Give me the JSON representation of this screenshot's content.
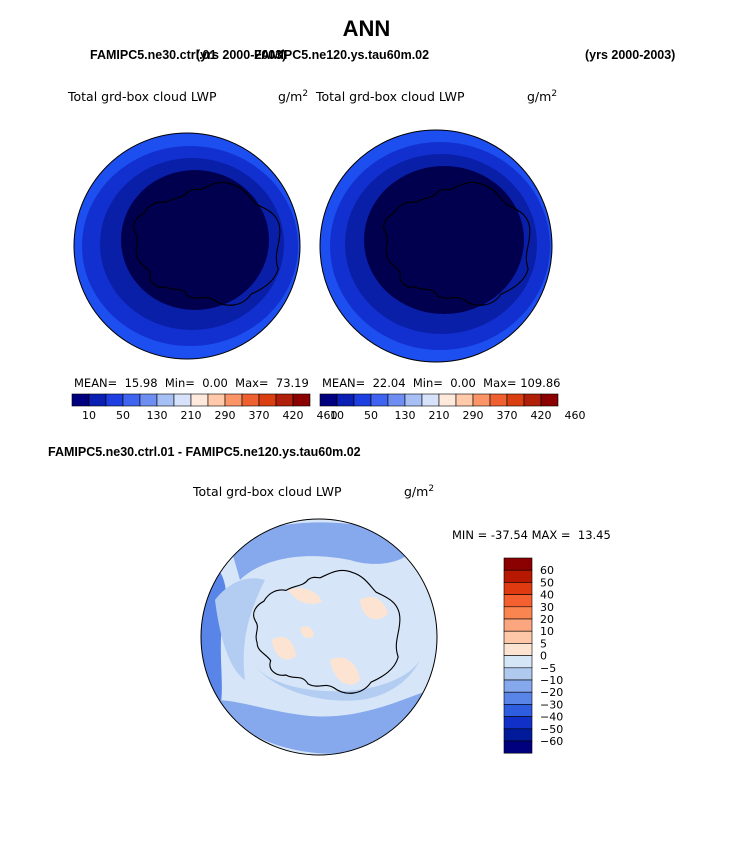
{
  "title": "ANN",
  "top_headers": {
    "left_case": "FAMIPC5.ne30.ctrl.01",
    "left_years": "(yrs 2000-2003)",
    "right_case": "FAMIPC5.ne120.ys.tau60m.02",
    "right_years": "(yrs 2000-2003)"
  },
  "panels": [
    {
      "id": "ctrl",
      "variable": "Total grd-box cloud LWP",
      "units": "g/m",
      "units_exp": "2",
      "stats": {
        "mean_label": "MEAN=",
        "mean": "15.98",
        "min_label": "Min=",
        "min": "0.00",
        "max_label": "Max=",
        "max": "73.19"
      }
    },
    {
      "id": "test",
      "variable": "Total grd-box cloud LWP",
      "units": "g/m",
      "units_exp": "2",
      "stats": {
        "mean_label": "MEAN=",
        "mean": "22.04",
        "min_label": "Min=",
        "min": "0.00",
        "max_label": "Max=",
        "max": "109.86"
      }
    }
  ],
  "absolute_colorbar": {
    "levels": [
      "10",
      "50",
      "130",
      "210",
      "290",
      "370",
      "420",
      "460"
    ],
    "colors": [
      "#00007f",
      "#0a1fb3",
      "#1d3ee0",
      "#3f64ef",
      "#6e8ef2",
      "#a6bff5",
      "#d6e3fb",
      "#ffe9dc",
      "#ffc9aa",
      "#fb9466",
      "#ef6030",
      "#d93f10",
      "#b02008",
      "#8b0000"
    ]
  },
  "difference": {
    "title": "FAMIPC5.ne30.ctrl.01 - FAMIPC5.ne120.ys.tau60m.02",
    "variable": "Total grd-box cloud LWP",
    "units": "g/m",
    "units_exp": "2",
    "stats": {
      "min_label": "MIN =",
      "min": "-37.54",
      "max_label": "MAX =",
      "max": "13.45"
    },
    "colorbar": {
      "labels": [
        "60",
        "50",
        "40",
        "30",
        "20",
        "10",
        "5",
        "0",
        "−5",
        "−10",
        "−20",
        "−30",
        "−40",
        "−50",
        "−60"
      ],
      "colors": [
        "#8b0000",
        "#b81800",
        "#e03a10",
        "#f56030",
        "#fb8550",
        "#fca680",
        "#fdc7a8",
        "#fde4d2",
        "#d5e6f7",
        "#b0c9ee",
        "#86a8ec",
        "#5a85e8",
        "#2f5de0",
        "#1030c8",
        "#001a99",
        "#00007f"
      ]
    }
  },
  "maps": {
    "colors": {
      "ctrl_levels": [
        "#00004f",
        "#0a1fa8",
        "#1230d0",
        "#1d4ef0"
      ],
      "diff_levels": [
        "#d6e6f8",
        "#b3cdf2",
        "#86a8ec",
        "#5a85e8",
        "#fde4d2"
      ]
    },
    "coastline_color": "#000000"
  }
}
